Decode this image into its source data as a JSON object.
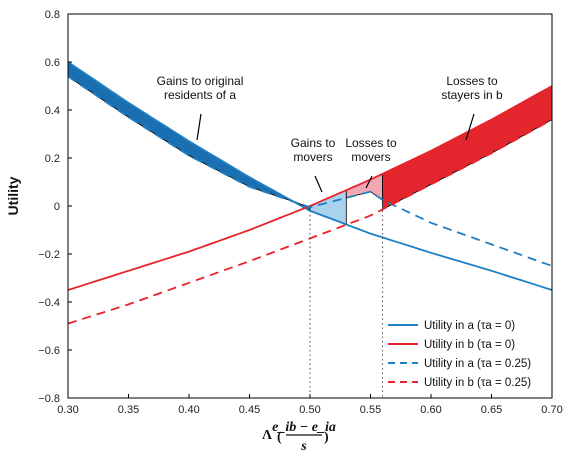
{
  "chart_data": {
    "type": "line",
    "xlabel_main": "Λ",
    "xlabel_num": "e_ib − e_ia",
    "xlabel_den": "s",
    "ylabel": "Utility",
    "xlim": [
      0.3,
      0.7
    ],
    "ylim": [
      -0.8,
      0.8
    ],
    "x_ticks": [
      0.3,
      0.35,
      0.4,
      0.45,
      0.5,
      0.55,
      0.6,
      0.65,
      0.7
    ],
    "x_tick_labels": [
      "0.30",
      "0.35",
      "0.40",
      "0.45",
      "0.50",
      "0.55",
      "0.60",
      "0.65",
      "0.70"
    ],
    "y_ticks": [
      -0.8,
      -0.6,
      -0.4,
      -0.2,
      0,
      0.2,
      0.4,
      0.6,
      0.8
    ],
    "y_tick_labels": [
      "−0.8",
      "−0.6",
      "−0.4",
      "−0.2",
      "0",
      "0.2",
      "0.4",
      "0.6",
      "0.8"
    ],
    "legend_placement": "bottom-right",
    "series": [
      {
        "name": "Utility in a (τa = 0)",
        "color": "#1f7fc4",
        "style": "solid",
        "x": [
          0.3,
          0.35,
          0.4,
          0.45,
          0.5,
          0.55,
          0.6,
          0.65,
          0.7
        ],
        "y": [
          0.6,
          0.43,
          0.27,
          0.12,
          -0.02,
          -0.115,
          -0.195,
          -0.27,
          -0.35
        ]
      },
      {
        "name": "Utility in b (τa = 0)",
        "color": "#e8232a",
        "style": "solid",
        "x": [
          0.3,
          0.35,
          0.4,
          0.45,
          0.5,
          0.55,
          0.6,
          0.65,
          0.7
        ],
        "y": [
          -0.35,
          -0.27,
          -0.19,
          -0.1,
          0.0,
          0.11,
          0.23,
          0.36,
          0.5
        ]
      },
      {
        "name": "Utility in a (τa = 0.25)",
        "color": "#1f7fc4",
        "style": "dashed",
        "x": [
          0.3,
          0.35,
          0.4,
          0.45,
          0.5,
          0.55,
          0.56,
          0.6,
          0.65,
          0.7
        ],
        "y": [
          0.54,
          0.37,
          0.21,
          0.08,
          -0.005,
          0.06,
          0.025,
          -0.07,
          -0.16,
          -0.25
        ]
      },
      {
        "name": "Utility in b (τa = 0.25)",
        "color": "#e8232a",
        "style": "dashed",
        "x": [
          0.3,
          0.35,
          0.4,
          0.45,
          0.5,
          0.55,
          0.6,
          0.65,
          0.7
        ],
        "y": [
          -0.49,
          -0.41,
          -0.32,
          -0.23,
          -0.135,
          -0.04,
          0.09,
          0.22,
          0.36
        ]
      }
    ],
    "regions": [
      {
        "label": "Gains to original residents of a",
        "color": "#1a6fb0",
        "x_from": 0.3,
        "x_to": 0.5
      },
      {
        "label": "Gains to movers",
        "color": "#a9d2ee",
        "x_from": 0.5,
        "x_to": 0.53
      },
      {
        "label": "Losses to movers",
        "color": "#f2a7b4",
        "x_from": 0.53,
        "x_to": 0.56
      },
      {
        "label": "Losses to stayers in b",
        "color": "#e3262e",
        "x_from": 0.56,
        "x_to": 0.7
      }
    ],
    "vlines": [
      0.5,
      0.56
    ],
    "annotations": [
      {
        "id": "gains-residents",
        "lines": [
          "Gains to original",
          "residents of a"
        ]
      },
      {
        "id": "losses-stayers",
        "lines": [
          "Losses to",
          "stayers in b"
        ]
      },
      {
        "id": "gains-movers",
        "lines": [
          "Gains to",
          "movers"
        ]
      },
      {
        "id": "losses-movers",
        "lines": [
          "Losses to",
          "movers"
        ]
      }
    ]
  }
}
